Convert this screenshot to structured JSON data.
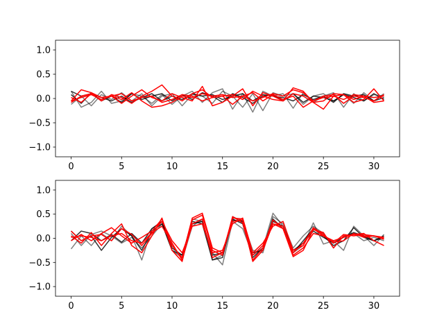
{
  "chart_data": [
    {
      "type": "line",
      "title": "",
      "xlabel": "",
      "ylabel": "",
      "xlim": [
        -1.55,
        32.55
      ],
      "ylim": [
        -1.2,
        1.2
      ],
      "xticks": [
        0,
        5,
        10,
        15,
        20,
        25,
        30
      ],
      "yticks": [
        -1.0,
        -0.5,
        0.0,
        0.5,
        1.0
      ],
      "ytick_labels": [
        "−1.0",
        "−0.5",
        "0.0",
        "0.5",
        "1.0"
      ],
      "grid": false,
      "legend": "none",
      "series": [
        {
          "color": "#000000",
          "opacity": 0.5,
          "values": [
            0.15,
            -0.18,
            -0.08,
            0.15,
            -0.1,
            -0.05,
            0.1,
            0.05,
            -0.1,
            0.08,
            -0.12,
            0.05,
            0.15,
            -0.08,
            0.12,
            0.2,
            -0.22,
            0.1,
            -0.28,
            0.15,
            0.05,
            0.1,
            -0.2,
            0.12,
            -0.08,
            0.05,
            0.12,
            -0.18,
            0.1,
            -0.05,
            0.08,
            0.05
          ]
        },
        {
          "color": "#000000",
          "opacity": 0.5,
          "values": [
            -0.12,
            0.05,
            -0.15,
            0.08,
            -0.02,
            0.12,
            -0.05,
            0.1,
            -0.15,
            0.05,
            0.1,
            -0.15,
            0.08,
            0.05,
            -0.1,
            0.15,
            0.05,
            -0.18,
            0.1,
            -0.25,
            0.12,
            0.05,
            0.1,
            -0.12,
            0.05,
            0.1,
            -0.05,
            0.08,
            -0.1,
            0.12,
            -0.05,
            0.1
          ]
        },
        {
          "color": "#000000",
          "opacity": 0.8,
          "values": [
            0.15,
            0.05,
            0.1,
            0.02,
            -0.05,
            0.05,
            -0.08,
            0.02,
            0.1,
            -0.05,
            0.05,
            -0.02,
            0.1,
            0.05,
            0.08,
            -0.02,
            0.05,
            0.1,
            -0.05,
            0.08,
            0.05,
            0.02,
            -0.05,
            0.08,
            -0.02,
            0.05,
            -0.08,
            0.1,
            0.05,
            0.08,
            -0.05,
            0.02
          ]
        },
        {
          "color": "#000000",
          "opacity": 0.8,
          "values": [
            0.08,
            -0.1,
            0.12,
            -0.05,
            0.05,
            -0.08,
            0.1,
            -0.02,
            0.05,
            0.1,
            -0.05,
            0.08,
            -0.02,
            0.12,
            0.05,
            -0.08,
            0.1,
            0.02,
            -0.1,
            0.05,
            0.08,
            -0.05,
            0.1,
            -0.08,
            0.05,
            0.02,
            -0.05,
            0.08,
            0.02,
            -0.05,
            0.1,
            -0.02
          ]
        },
        {
          "color": "#ff0000",
          "opacity": 1.0,
          "values": [
            -0.05,
            0.18,
            0.12,
            0.02,
            0.05,
            -0.1,
            0.05,
            0.18,
            0.02,
            -0.05,
            0.1,
            0.02,
            -0.05,
            0.25,
            -0.15,
            -0.08,
            0.05,
            0.2,
            -0.15,
            0.12,
            0.05,
            -0.05,
            0.22,
            0.15,
            -0.08,
            -0.05,
            0.1,
            0.08,
            -0.08,
            -0.02,
            0.2,
            -0.05
          ]
        },
        {
          "color": "#ff0000",
          "opacity": 1.0,
          "values": [
            0.02,
            -0.08,
            0.1,
            -0.05,
            0.08,
            0.02,
            -0.1,
            0.05,
            0.15,
            0.28,
            0.05,
            -0.05,
            0.1,
            0.18,
            0.02,
            0.05,
            -0.12,
            0.05,
            0.12,
            -0.05,
            0.08,
            -0.02,
            0.05,
            -0.18,
            -0.05,
            0.05,
            0.08,
            -0.1,
            0.05,
            0.02,
            -0.05,
            0.08
          ]
        },
        {
          "color": "#ff0000",
          "opacity": 1.0,
          "values": [
            -0.08,
            0.05,
            0.1,
            0.02,
            0.05,
            -0.02,
            0.12,
            -0.05,
            -0.18,
            -0.15,
            -0.08,
            0.05,
            0.02,
            0.1,
            0.05,
            0.08,
            0.02,
            0.05,
            -0.05,
            0.02,
            0.1,
            0.05,
            0.18,
            0.12,
            -0.05,
            0.02,
            0.05,
            -0.02,
            0.08,
            0.05,
            -0.08,
            -0.05
          ]
        },
        {
          "color": "#ff0000",
          "opacity": 1.0,
          "values": [
            -0.05,
            0.02,
            0.08,
            -0.02,
            0.05,
            0.1,
            -0.05,
            0.02,
            0.05,
            -0.08,
            -0.02,
            0.08,
            0.05,
            -0.05,
            0.02,
            0.05,
            0.08,
            -0.02,
            0.15,
            0.05,
            -0.02,
            -0.05,
            0.1,
            0.05,
            -0.08,
            -0.22,
            0.05,
            0.08,
            -0.02,
            0.05,
            0.02,
            0.05
          ]
        }
      ]
    },
    {
      "type": "line",
      "title": "",
      "xlabel": "",
      "ylabel": "",
      "xlim": [
        -1.55,
        32.55
      ],
      "ylim": [
        -1.2,
        1.2
      ],
      "xticks": [
        0,
        5,
        10,
        15,
        20,
        25,
        30
      ],
      "yticks": [
        -1.0,
        -0.5,
        0.0,
        0.5,
        1.0
      ],
      "ytick_labels": [
        "−1.0",
        "−0.5",
        "0.0",
        "0.5",
        "1.0"
      ],
      "grid": false,
      "legend": "none",
      "series": [
        {
          "color": "#000000",
          "opacity": 0.5,
          "values": [
            -0.22,
            0.05,
            -0.15,
            0.1,
            -0.05,
            0.25,
            0.05,
            -0.45,
            0.2,
            0.35,
            -0.25,
            -0.4,
            0.4,
            0.35,
            -0.3,
            -0.55,
            0.35,
            0.2,
            -0.35,
            -0.2,
            0.52,
            0.25,
            -0.3,
            -0.15,
            0.32,
            -0.12,
            -0.05,
            -0.25,
            0.25,
            0.05,
            -0.15,
            0.08
          ]
        },
        {
          "color": "#000000",
          "opacity": 0.5,
          "values": [
            0.1,
            -0.15,
            0.08,
            0.15,
            0.05,
            -0.1,
            0.02,
            -0.2,
            0.05,
            0.3,
            -0.1,
            -0.45,
            0.25,
            0.4,
            -0.45,
            -0.35,
            0.45,
            0.35,
            -0.25,
            -0.3,
            0.45,
            0.3,
            -0.2,
            0.05,
            0.25,
            0.1,
            -0.2,
            0.05,
            0.1,
            -0.05,
            0.02,
            -0.05
          ]
        },
        {
          "color": "#000000",
          "opacity": 0.8,
          "values": [
            0.15,
            -0.05,
            0.05,
            -0.25,
            0.02,
            0.2,
            0.05,
            -0.25,
            0.15,
            0.3,
            -0.25,
            -0.35,
            0.35,
            0.3,
            -0.45,
            -0.4,
            0.4,
            0.3,
            -0.4,
            -0.2,
            0.4,
            0.2,
            -0.3,
            -0.05,
            0.2,
            0.05,
            -0.15,
            -0.05,
            0.22,
            0.02,
            -0.05,
            0.05
          ]
        },
        {
          "color": "#000000",
          "opacity": 0.8,
          "values": [
            -0.05,
            0.15,
            0.1,
            -0.05,
            0.08,
            -0.08,
            0.1,
            -0.1,
            0.2,
            0.35,
            -0.2,
            -0.35,
            0.3,
            0.35,
            -0.35,
            -0.3,
            0.38,
            0.35,
            -0.3,
            -0.25,
            0.35,
            0.25,
            -0.25,
            -0.1,
            0.15,
            0.02,
            -0.1,
            0.02,
            0.12,
            0.05,
            -0.05,
            0.02
          ]
        },
        {
          "color": "#ff0000",
          "opacity": 1.0,
          "values": [
            0.05,
            -0.1,
            0.12,
            -0.15,
            0.1,
            0.3,
            -0.15,
            -0.3,
            0.05,
            0.42,
            -0.25,
            -0.48,
            0.38,
            0.48,
            -0.25,
            -0.35,
            0.45,
            0.32,
            -0.45,
            -0.2,
            0.38,
            0.2,
            -0.38,
            -0.25,
            0.18,
            0.12,
            -0.2,
            0.05,
            0.08,
            0.1,
            -0.05,
            -0.15
          ]
        },
        {
          "color": "#ff0000",
          "opacity": 1.0,
          "values": [
            -0.05,
            0.08,
            -0.05,
            0.1,
            0.22,
            0.05,
            -0.1,
            0.02,
            0.15,
            0.4,
            -0.15,
            -0.4,
            0.42,
            0.52,
            -0.2,
            -0.3,
            0.42,
            0.4,
            -0.35,
            -0.15,
            0.3,
            0.25,
            -0.3,
            -0.1,
            0.2,
            0.05,
            -0.08,
            -0.05,
            0.1,
            0.02,
            0.05,
            -0.02
          ]
        },
        {
          "color": "#ff0000",
          "opacity": 1.0,
          "values": [
            0.15,
            -0.05,
            0.05,
            0.08,
            -0.05,
            0.2,
            0.08,
            -0.15,
            0.1,
            0.35,
            -0.05,
            -0.3,
            0.25,
            0.3,
            -0.3,
            -0.25,
            0.3,
            0.42,
            -0.3,
            -0.1,
            0.25,
            0.35,
            -0.25,
            -0.15,
            0.22,
            0.08,
            -0.1,
            0.08,
            0.05,
            0.08,
            0.05,
            0.02
          ]
        },
        {
          "color": "#ff0000",
          "opacity": 1.0,
          "values": [
            0.02,
            0.05,
            0.02,
            -0.05,
            0.05,
            0.1,
            -0.05,
            -0.1,
            0.12,
            0.25,
            -0.1,
            -0.45,
            0.3,
            0.4,
            -0.4,
            -0.3,
            0.35,
            0.38,
            -0.48,
            -0.25,
            0.3,
            0.2,
            -0.35,
            -0.2,
            0.1,
            0.05,
            -0.05,
            0.02,
            0.08,
            0.05,
            0.05,
            0.0
          ]
        }
      ]
    }
  ]
}
